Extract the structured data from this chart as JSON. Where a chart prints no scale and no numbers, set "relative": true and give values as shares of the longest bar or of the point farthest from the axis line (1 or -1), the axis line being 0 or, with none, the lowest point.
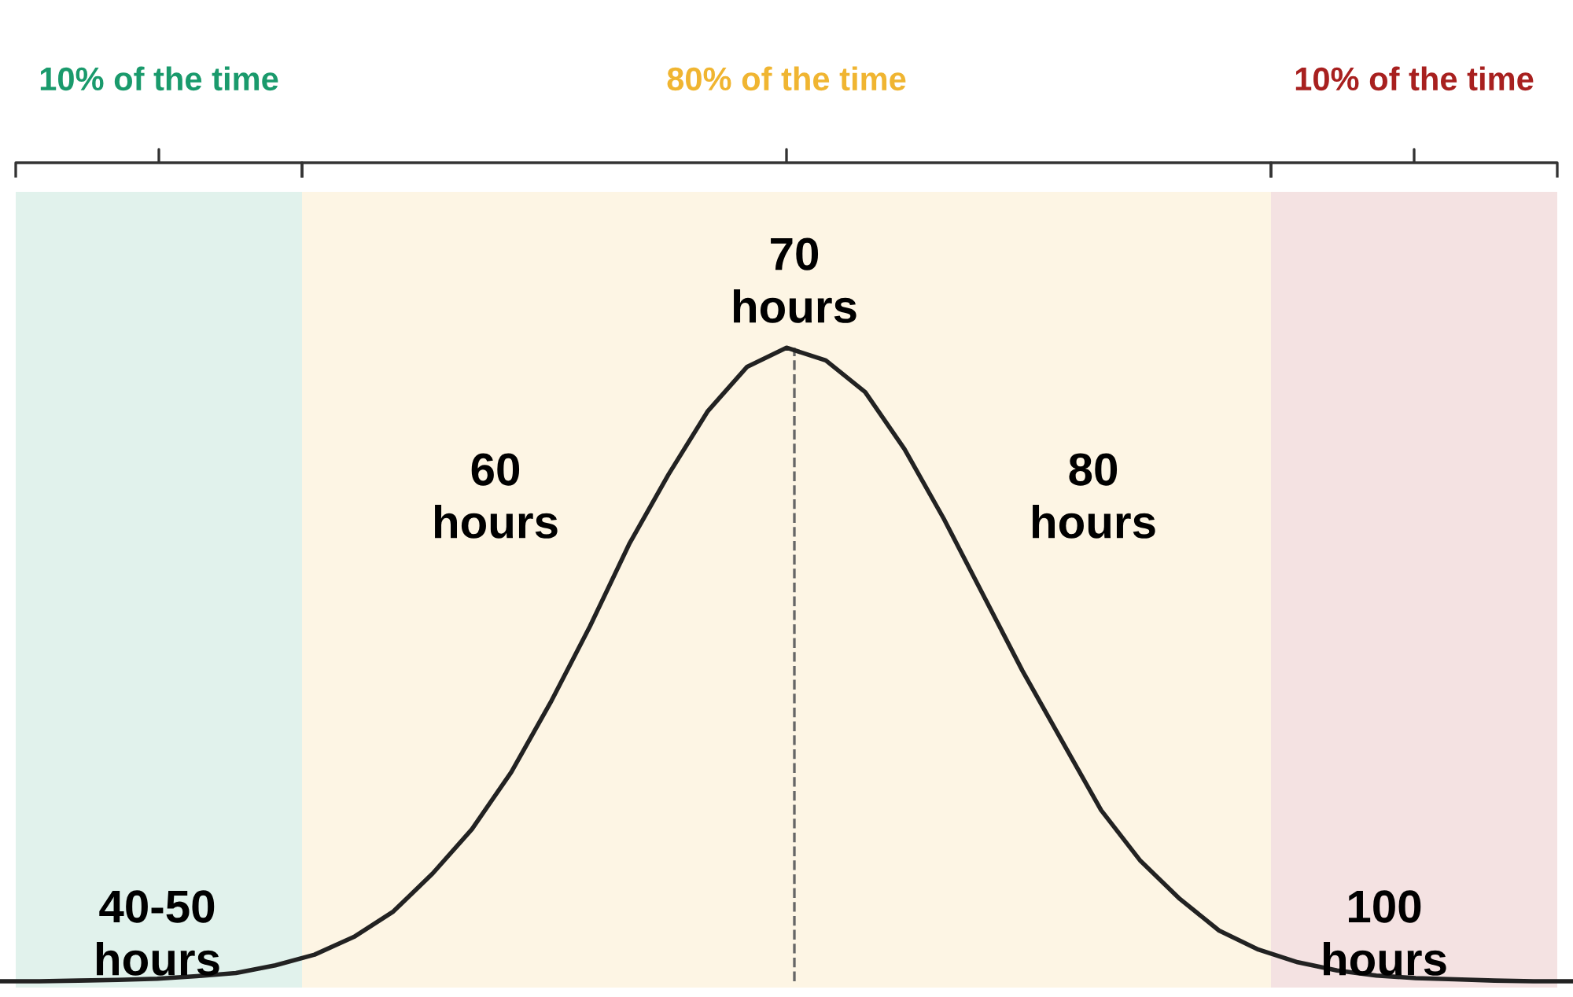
{
  "chart_data": {
    "type": "line",
    "relative": true,
    "categories": [
      null,
      null,
      null,
      null,
      null,
      null,
      null,
      null,
      null,
      null,
      null,
      null,
      null,
      null,
      null,
      null,
      null,
      null,
      null,
      null,
      null,
      null,
      null,
      null,
      null,
      null,
      null,
      null,
      null,
      null,
      null,
      null,
      null,
      null,
      null,
      null,
      null,
      null,
      null,
      null,
      null
    ],
    "series": [
      {
        "color": "#222222",
        "values": [
          0,
          0,
          0.001,
          0.002,
          0.004,
          0.008,
          0.013,
          0.025,
          0.042,
          0.07,
          0.11,
          0.17,
          0.24,
          0.33,
          0.44,
          0.56,
          0.69,
          0.8,
          0.9,
          0.97,
          1.0,
          0.98,
          0.93,
          0.84,
          0.73,
          0.61,
          0.49,
          0.38,
          0.27,
          0.19,
          0.13,
          0.08,
          0.05,
          0.03,
          0.017,
          0.009,
          0.005,
          0.003,
          0.001,
          0,
          0
        ]
      }
    ],
    "annotations": [
      "10% of the time",
      "80% of the time",
      "10% of the time",
      "60\nhours",
      "70\nhours",
      "80\nhours",
      "40-50\nhours",
      "100\nhours"
    ],
    "line_style": "solid",
    "marker": "none"
  }
}
